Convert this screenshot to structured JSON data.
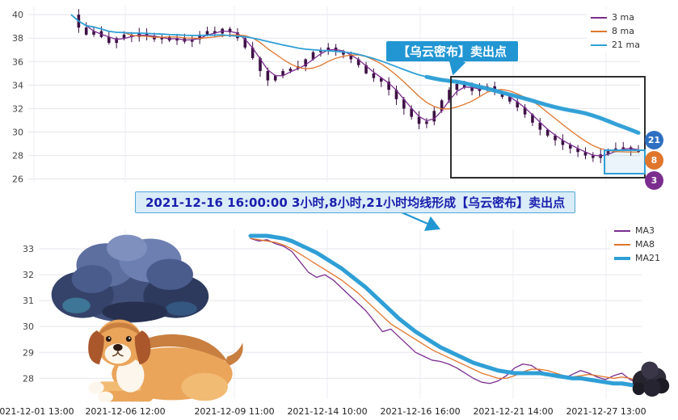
{
  "colors": {
    "accent_blue": "#2196d3",
    "banner_bg": "#d9ecf8",
    "banner_border": "#56a8d8",
    "banner_text": "#1a1fae",
    "box_dark": "#2f2f2f",
    "grid": "#e5e5ed"
  },
  "annotations": {
    "callout_text": "【乌云密布】卖出点",
    "banner_text": "2021-12-16 16:00:00 3小时,8小时,21小时均线形成【乌云密布】卖出点"
  },
  "badges": [
    {
      "label": "21",
      "color": "#2f6fc1"
    },
    {
      "label": "8",
      "color": "#e0762c"
    },
    {
      "label": "3",
      "color": "#7b2d8e"
    }
  ],
  "illustrations": [
    "storm-cloud-illustration",
    "dog-illustration",
    "dark-storm-cloud-small"
  ],
  "chart_data": [
    {
      "type": "bar",
      "subtype": "candlestick-with-moving-averages",
      "title": "",
      "xlabel": "",
      "ylabel": "",
      "grid": true,
      "legend_position": "top-right",
      "legend": [
        "3 ma",
        "8 ma",
        "21 ma"
      ],
      "y_ticks": [
        26,
        28,
        30,
        32,
        34,
        36,
        38,
        40
      ],
      "ylim": [
        25.7,
        40.7
      ],
      "x_labels": [
        "2021-12-01 13:00",
        "2021-12-06 12:00",
        "2021-12-09 11:00",
        "2021-12-14 10:00",
        "2021-12-16 16:00",
        "2021-12-21 14:00",
        "2021-12-27 13:00"
      ],
      "ma_windows": [
        3,
        8,
        21
      ],
      "closes": [
        40.0,
        38.9,
        38.3,
        38.6,
        38.1,
        37.6,
        38.0,
        38.3,
        38.1,
        38.4,
        38.2,
        37.9,
        38.1,
        37.8,
        38.0,
        37.7,
        37.9,
        38.3,
        38.6,
        38.4,
        38.8,
        38.5,
        38.0,
        37.2,
        36.3,
        35.2,
        34.4,
        34.8,
        35.2,
        35.4,
        35.6,
        36.2,
        36.8,
        37.0,
        37.2,
        36.9,
        36.6,
        36.2,
        35.7,
        35.0,
        34.6,
        34.3,
        33.6,
        32.8,
        32.0,
        31.3,
        30.7,
        30.9,
        31.8,
        32.7,
        33.6,
        34.1,
        33.8,
        33.5,
        33.7,
        33.9,
        33.4,
        33.0,
        32.6,
        32.1,
        31.5,
        30.8,
        30.2,
        29.7,
        29.3,
        28.9,
        28.6,
        28.3,
        28.0,
        27.8,
        28.1,
        28.4,
        28.6,
        28.7,
        28.5,
        28.3
      ],
      "colors": {
        "ma3": "#7b2d8e",
        "ma8": "#e0762c",
        "ma21": "#2f9fd6",
        "candle": "#3d1144"
      }
    },
    {
      "type": "line",
      "title": "",
      "xlabel": "",
      "ylabel": "",
      "grid": true,
      "legend_position": "top-right",
      "legend": [
        "MA3",
        "MA8",
        "MA21"
      ],
      "y_ticks": [
        28,
        29,
        30,
        31,
        32,
        33
      ],
      "ylim": [
        27.45,
        33.75
      ],
      "x_labels_shared_with_top": true,
      "series": [
        {
          "name": "MA3",
          "color": "#7b2d8e",
          "width": 1.3,
          "values": [
            33.4,
            33.3,
            33.35,
            33.2,
            33.1,
            32.9,
            32.5,
            32.1,
            31.9,
            32.0,
            31.8,
            31.5,
            31.2,
            30.9,
            30.6,
            30.2,
            29.8,
            29.9,
            29.6,
            29.3,
            29.0,
            28.85,
            28.7,
            28.65,
            28.55,
            28.4,
            28.2,
            28.0,
            27.85,
            27.8,
            27.9,
            28.1,
            28.4,
            28.55,
            28.5,
            28.3,
            28.15,
            28.05,
            28.0,
            28.15,
            28.3,
            28.2,
            28.05,
            27.95,
            28.1,
            28.2,
            27.95,
            27.8
          ]
        },
        {
          "name": "MA8",
          "color": "#e0762c",
          "width": 1.3,
          "values": [
            33.4,
            33.35,
            33.3,
            33.25,
            33.15,
            33.0,
            32.8,
            32.6,
            32.4,
            32.2,
            32.0,
            31.8,
            31.55,
            31.3,
            31.0,
            30.7,
            30.4,
            30.1,
            29.9,
            29.7,
            29.5,
            29.3,
            29.1,
            28.95,
            28.8,
            28.65,
            28.5,
            28.35,
            28.2,
            28.1,
            28.0,
            28.0,
            28.1,
            28.25,
            28.35,
            28.35,
            28.3,
            28.2,
            28.1,
            28.05,
            28.1,
            28.15,
            28.1,
            28.05,
            28.0,
            28.05,
            28.0,
            27.85
          ]
        },
        {
          "name": "MA21",
          "color": "#2f9fd6",
          "width": 5,
          "values": [
            33.5,
            33.5,
            33.5,
            33.45,
            33.4,
            33.3,
            33.15,
            33.0,
            32.85,
            32.65,
            32.45,
            32.25,
            32.0,
            31.75,
            31.5,
            31.2,
            30.9,
            30.6,
            30.3,
            30.05,
            29.8,
            29.6,
            29.4,
            29.2,
            29.05,
            28.9,
            28.75,
            28.6,
            28.5,
            28.4,
            28.3,
            28.25,
            28.2,
            28.2,
            28.2,
            28.2,
            28.15,
            28.1,
            28.05,
            28.0,
            28.0,
            27.95,
            27.9,
            27.85,
            27.8,
            27.8,
            27.75,
            27.7
          ]
        }
      ]
    }
  ]
}
